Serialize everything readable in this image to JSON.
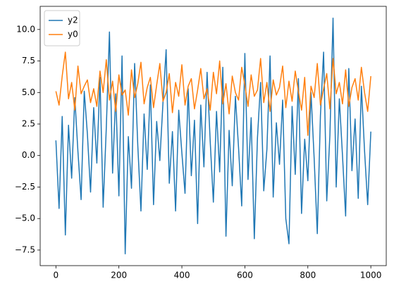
{
  "chart_data": {
    "type": "line",
    "x": [
      0,
      10,
      20,
      30,
      40,
      50,
      60,
      70,
      80,
      90,
      100,
      110,
      120,
      130,
      140,
      150,
      160,
      170,
      180,
      190,
      200,
      210,
      220,
      230,
      240,
      250,
      260,
      270,
      280,
      290,
      300,
      310,
      320,
      330,
      340,
      350,
      360,
      370,
      380,
      390,
      400,
      410,
      420,
      430,
      440,
      450,
      460,
      470,
      480,
      490,
      500,
      510,
      520,
      530,
      540,
      550,
      560,
      570,
      580,
      590,
      600,
      610,
      620,
      630,
      640,
      650,
      660,
      670,
      680,
      690,
      700,
      710,
      720,
      730,
      740,
      750,
      760,
      770,
      780,
      790,
      800,
      810,
      820,
      830,
      840,
      850,
      860,
      870,
      880,
      890,
      900,
      910,
      920,
      930,
      940,
      950,
      960,
      970,
      980,
      990,
      1000
    ],
    "series": [
      {
        "name": "y2",
        "color": "#1f77b4",
        "values": [
          1.2,
          -4.2,
          3.1,
          -6.3,
          2.4,
          -1.8,
          4.6,
          0.3,
          -3.5,
          5.1,
          1.7,
          -2.9,
          3.8,
          -0.6,
          6.2,
          -4.1,
          2.2,
          9.8,
          -1.4,
          4.9,
          -3.2,
          7.9,
          -7.8,
          1.5,
          -2.6,
          7.3,
          0.8,
          -4.4,
          3.3,
          -1.1,
          5.6,
          -3.9,
          2.7,
          -0.4,
          4.2,
          8.4,
          -2.2,
          1.9,
          -4.4,
          3.6,
          0.2,
          -3.0,
          5.3,
          -1.6,
          2.8,
          -5.4,
          4.0,
          -0.9,
          6.6,
          1.1,
          -3.7,
          3.5,
          -1.3,
          7.0,
          -6.4,
          2.0,
          -2.4,
          4.7,
          0.6,
          -4.0,
          8.1,
          -1.9,
          3.0,
          -6.6,
          1.4,
          5.8,
          -2.8,
          0.5,
          7.9,
          -3.3,
          2.6,
          -0.7,
          4.4,
          -5.0,
          -7.0,
          3.9,
          -1.5,
          6.1,
          -4.6,
          1.3,
          -2.0,
          5.0,
          -0.2,
          -6.2,
          3.2,
          8.2,
          -3.6,
          1.6,
          10.9,
          -2.5,
          4.5,
          0.0,
          -4.8,
          6.9,
          -1.2,
          2.9,
          -3.4,
          5.5,
          0.4,
          -3.9,
          1.9
        ]
      },
      {
        "name": "y0",
        "color": "#ff7f0e",
        "values": [
          5.1,
          4.0,
          6.3,
          8.2,
          4.5,
          5.8,
          3.6,
          7.1,
          4.9,
          5.5,
          6.0,
          4.2,
          5.3,
          3.9,
          6.7,
          5.0,
          7.6,
          4.4,
          5.9,
          3.5,
          6.4,
          4.8,
          5.2,
          3.2,
          6.8,
          4.6,
          5.7,
          7.4,
          4.1,
          5.4,
          6.2,
          3.8,
          5.6,
          7.3,
          4.3,
          5.0,
          6.5,
          3.4,
          5.8,
          4.7,
          7.2,
          4.0,
          5.5,
          6.1,
          3.7,
          5.2,
          6.9,
          4.5,
          5.3,
          3.6,
          6.6,
          4.9,
          7.5,
          4.1,
          5.7,
          3.3,
          6.3,
          5.0,
          4.4,
          7.0,
          5.6,
          3.9,
          6.4,
          4.7,
          5.2,
          7.7,
          4.2,
          5.8,
          3.5,
          6.0,
          4.8,
          5.4,
          7.1,
          3.8,
          5.9,
          4.3,
          6.7,
          5.1,
          3.6,
          6.2,
          1.6,
          5.5,
          4.6,
          7.3,
          4.0,
          5.3,
          6.5,
          3.7,
          7.7,
          4.9,
          5.8,
          4.1,
          6.8,
          3.9,
          5.4,
          6.1,
          4.4,
          7.0,
          5.0,
          3.5,
          6.3
        ]
      }
    ],
    "xlim": [
      -49.95,
      1048.95
    ],
    "xticks": [
      0,
      200,
      400,
      600,
      800,
      1000
    ],
    "ylim": [
      -8.735,
      11.835
    ],
    "yticks": [
      {
        "value": -7.5,
        "label": "−7.5"
      },
      {
        "value": -5,
        "label": "−5.0"
      },
      {
        "value": -2.5,
        "label": "−2.5"
      },
      {
        "value": 0,
        "label": "0.0"
      },
      {
        "value": 2.5,
        "label": "2.5"
      },
      {
        "value": 5,
        "label": "5.0"
      },
      {
        "value": 7.5,
        "label": "7.5"
      },
      {
        "value": 10,
        "label": "10.0"
      }
    ],
    "legend": "upper left"
  }
}
